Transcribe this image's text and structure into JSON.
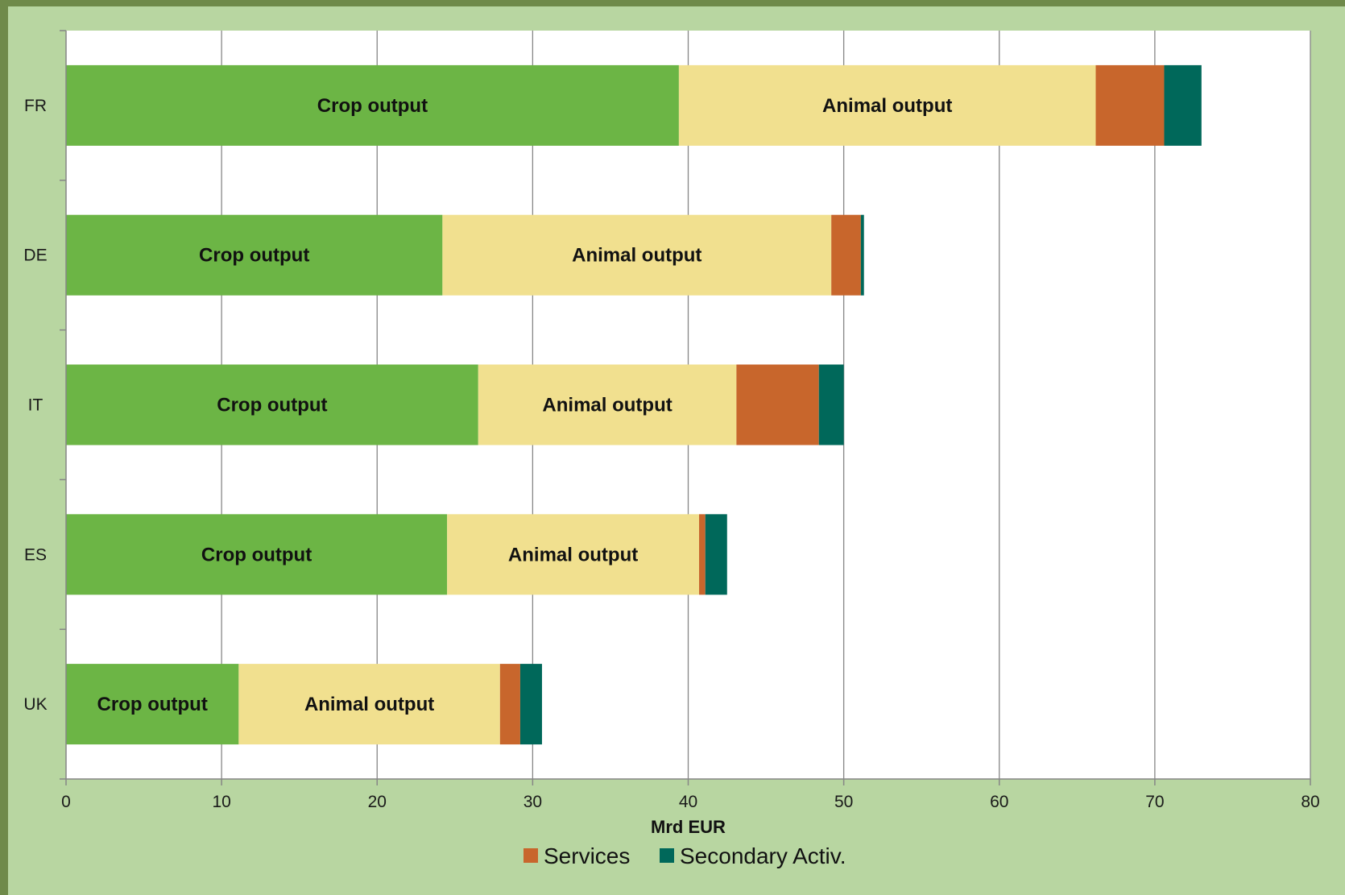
{
  "chart_data": {
    "type": "bar",
    "orientation": "horizontal",
    "stacked": true,
    "categories": [
      "FR",
      "DE",
      "IT",
      "ES",
      "UK"
    ],
    "series": [
      {
        "name": "",
        "segment_label": "Crop output",
        "color": "#6cb545",
        "values": [
          39.4,
          24.2,
          26.5,
          24.5,
          11.1
        ]
      },
      {
        "name": "",
        "segment_label": "Animal output",
        "color": "#f1e08f",
        "values": [
          26.8,
          25.0,
          16.6,
          16.2,
          16.8
        ]
      },
      {
        "name": "Services",
        "color": "#c8662c",
        "values": [
          4.4,
          1.9,
          5.3,
          0.4,
          1.3
        ]
      },
      {
        "name": "Secondary Activ.",
        "color": "#00685a",
        "values": [
          2.4,
          0.2,
          1.6,
          1.4,
          1.4
        ]
      }
    ],
    "xlabel": "Mrd EUR",
    "xlim": [
      0,
      80
    ],
    "xticks": [
      0,
      10,
      20,
      30,
      40,
      50,
      60,
      70,
      80
    ],
    "grid": "vertical",
    "legend_position": "bottom-center",
    "legend_entries": [
      "Services",
      "Secondary Activ."
    ],
    "colors": {
      "frame_background": "#b8d6a1",
      "plot_background": "#ffffff",
      "gridline": "#868686",
      "axis": "#868686"
    }
  }
}
